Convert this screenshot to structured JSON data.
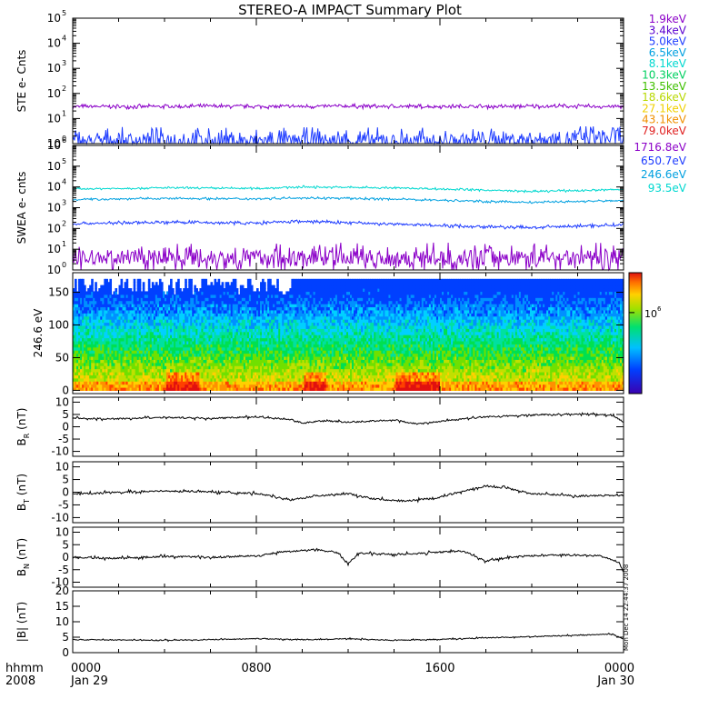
{
  "title": "STEREO-A IMPACT Summary Plot",
  "stamp": "Mon Dec 14 22:44:37 2008",
  "time_axis": {
    "corner_top": "hhmm",
    "corner_bottom": "2008",
    "ticks": [
      {
        "hour": 0,
        "label": "0000",
        "sub": "Jan 29"
      },
      {
        "hour": 8,
        "label": "0800",
        "sub": ""
      },
      {
        "hour": 16,
        "label": "1600",
        "sub": ""
      },
      {
        "hour": 24,
        "label": "0000",
        "sub": "Jan 30"
      }
    ]
  },
  "chart_data": [
    {
      "type": "line",
      "name": "ste",
      "ylabel": "STE e- Cnts",
      "yscale": "log",
      "ylim": [
        1,
        100000
      ],
      "yticks": [
        {
          "v": 1,
          "label": "10",
          "exp": "0"
        },
        {
          "v": 10,
          "label": "10",
          "exp": "1"
        },
        {
          "v": 100,
          "label": "10",
          "exp": "2"
        },
        {
          "v": 1000,
          "label": "10",
          "exp": "3"
        },
        {
          "v": 10000,
          "label": "10",
          "exp": "4"
        },
        {
          "v": 100000,
          "label": "10",
          "exp": "5"
        }
      ],
      "legend": [
        {
          "label": "1.9keV",
          "color": "#8b00c8"
        },
        {
          "label": "3.4keV",
          "color": "#5a00d0"
        },
        {
          "label": "5.0keV",
          "color": "#1e3cff"
        },
        {
          "label": "6.5keV",
          "color": "#00a0e0"
        },
        {
          "label": "8.1keV",
          "color": "#00d8d0"
        },
        {
          "label": "10.3keV",
          "color": "#00d060"
        },
        {
          "label": "13.5keV",
          "color": "#40c000"
        },
        {
          "label": "18.6keV",
          "color": "#b8d800"
        },
        {
          "label": "27.1keV",
          "color": "#f0d000"
        },
        {
          "label": "43.1keV",
          "color": "#f09000"
        },
        {
          "label": "79.0keV",
          "color": "#e02020"
        }
      ],
      "series": [
        {
          "color": "#8b00c8",
          "values": [
            [
              0,
              30
            ],
            [
              3,
              30
            ],
            [
              6,
              31
            ],
            [
              9,
              30
            ],
            [
              12,
              31
            ],
            [
              15,
              30
            ],
            [
              18,
              30
            ],
            [
              21,
              31
            ],
            [
              24,
              30
            ]
          ],
          "noise": 0.06
        },
        {
          "color": "#1e3cff",
          "values": [
            [
              0,
              1.2
            ],
            [
              4,
              1.3
            ],
            [
              8,
              1.2
            ],
            [
              12,
              1.3
            ],
            [
              16,
              1.2
            ],
            [
              19,
              1.4
            ],
            [
              22,
              1.6
            ],
            [
              24,
              1.7
            ]
          ],
          "noise": 0.35
        }
      ]
    },
    {
      "type": "line",
      "name": "swea",
      "ylabel": "SWEA e- cnts",
      "yscale": "log",
      "ylim": [
        1,
        1000000
      ],
      "yticks": [
        {
          "v": 1,
          "label": "10",
          "exp": "0"
        },
        {
          "v": 10,
          "label": "10",
          "exp": "1"
        },
        {
          "v": 100,
          "label": "10",
          "exp": "2"
        },
        {
          "v": 1000,
          "label": "10",
          "exp": "3"
        },
        {
          "v": 10000,
          "label": "10",
          "exp": "4"
        },
        {
          "v": 100000,
          "label": "10",
          "exp": "5"
        },
        {
          "v": 1000000,
          "label": "10",
          "exp": "6"
        }
      ],
      "legend": [
        {
          "label": "1716.8eV",
          "color": "#8b00c8"
        },
        {
          "label": "650.7eV",
          "color": "#1e3cff"
        },
        {
          "label": "246.6eV",
          "color": "#00a0e0"
        },
        {
          "label": "93.5eV",
          "color": "#00d8d0"
        }
      ],
      "series": [
        {
          "color": "#00d8d0",
          "values": [
            [
              0,
              8000
            ],
            [
              4,
              9000
            ],
            [
              8,
              8500
            ],
            [
              10,
              10000
            ],
            [
              14,
              9000
            ],
            [
              18,
              7000
            ],
            [
              20,
              6000
            ],
            [
              24,
              7500
            ]
          ],
          "noise": 0.04
        },
        {
          "color": "#00a0e0",
          "values": [
            [
              0,
              2500
            ],
            [
              4,
              2800
            ],
            [
              8,
              2700
            ],
            [
              10,
              3000
            ],
            [
              14,
              2600
            ],
            [
              18,
              2000
            ],
            [
              20,
              1800
            ],
            [
              24,
              2200
            ]
          ],
          "noise": 0.04
        },
        {
          "color": "#1e3cff",
          "values": [
            [
              0,
              170
            ],
            [
              4,
              200
            ],
            [
              8,
              180
            ],
            [
              10,
              220
            ],
            [
              14,
              160
            ],
            [
              18,
              120
            ],
            [
              20,
              110
            ],
            [
              24,
              150
            ]
          ],
          "noise": 0.06
        },
        {
          "color": "#8b00c8",
          "values": [
            [
              0,
              4
            ],
            [
              8,
              4
            ],
            [
              16,
              4
            ],
            [
              24,
              4
            ]
          ],
          "noise": 0.45
        }
      ]
    },
    {
      "type": "heatmap",
      "name": "pad",
      "ylabel": "246.6 eV",
      "ylim": [
        -5,
        180
      ],
      "yticks": [
        {
          "v": 0,
          "label": "0"
        },
        {
          "v": 50,
          "label": "50"
        },
        {
          "v": 100,
          "label": "100"
        },
        {
          "v": 150,
          "label": "150"
        }
      ],
      "colorbar": {
        "tick_label": "10",
        "tick_exp": "6"
      }
    },
    {
      "type": "line",
      "name": "br",
      "ylabel": "B",
      "ysub": "R",
      "yunit": " (nT)",
      "ylim": [
        -12,
        12
      ],
      "yticks": [
        {
          "v": -10,
          "label": "-10"
        },
        {
          "v": -5,
          "label": "-5"
        },
        {
          "v": 0,
          "label": "0"
        },
        {
          "v": 5,
          "label": "5"
        },
        {
          "v": 10,
          "label": "10"
        }
      ],
      "series": [
        {
          "color": "#000000",
          "values": [
            [
              0,
              3.5
            ],
            [
              2,
              3.2
            ],
            [
              4,
              3.8
            ],
            [
              6,
              3.4
            ],
            [
              8,
              4.0
            ],
            [
              9.5,
              3.0
            ],
            [
              10,
              1.5
            ],
            [
              11,
              2.5
            ],
            [
              12,
              1.8
            ],
            [
              14,
              2.8
            ],
            [
              15,
              1.2
            ],
            [
              16,
              2.2
            ],
            [
              18,
              4.0
            ],
            [
              20,
              4.8
            ],
            [
              22,
              5.2
            ],
            [
              23.5,
              4.8
            ],
            [
              24,
              2.0
            ]
          ],
          "noise": 0.3
        }
      ]
    },
    {
      "type": "line",
      "name": "bt",
      "ylabel": "B",
      "ysub": "T",
      "yunit": " (nT)",
      "ylim": [
        -12,
        12
      ],
      "yticks": [
        {
          "v": -10,
          "label": "-10"
        },
        {
          "v": -5,
          "label": "-5"
        },
        {
          "v": 0,
          "label": "0"
        },
        {
          "v": 5,
          "label": "5"
        },
        {
          "v": 10,
          "label": "10"
        }
      ],
      "series": [
        {
          "color": "#000000",
          "values": [
            [
              0,
              -0.8
            ],
            [
              2,
              0
            ],
            [
              4,
              0.5
            ],
            [
              6,
              0.2
            ],
            [
              8,
              -0.5
            ],
            [
              9.5,
              -3
            ],
            [
              10.5,
              -1.5
            ],
            [
              12,
              -0.5
            ],
            [
              13,
              -2.5
            ],
            [
              14.5,
              -3.5
            ],
            [
              16,
              -2
            ],
            [
              17,
              0.5
            ],
            [
              18,
              2.5
            ],
            [
              19,
              1.5
            ],
            [
              20,
              -0.5
            ],
            [
              22,
              -1.5
            ],
            [
              24,
              -1.2
            ]
          ],
          "noise": 0.35
        }
      ]
    },
    {
      "type": "line",
      "name": "bn",
      "ylabel": "B",
      "ysub": "N",
      "yunit": " (nT)",
      "ylim": [
        -12,
        12
      ],
      "yticks": [
        {
          "v": -10,
          "label": "-10"
        },
        {
          "v": -5,
          "label": "-5"
        },
        {
          "v": 0,
          "label": "0"
        },
        {
          "v": 5,
          "label": "5"
        },
        {
          "v": 10,
          "label": "10"
        }
      ],
      "series": [
        {
          "color": "#000000",
          "values": [
            [
              0,
              0
            ],
            [
              2,
              -0.5
            ],
            [
              4,
              0.3
            ],
            [
              6,
              0
            ],
            [
              8,
              0.5
            ],
            [
              9,
              2
            ],
            [
              10.5,
              3
            ],
            [
              11.5,
              2
            ],
            [
              12,
              -2.5
            ],
            [
              12.5,
              1.5
            ],
            [
              14,
              1
            ],
            [
              16,
              2
            ],
            [
              17,
              2.5
            ],
            [
              18,
              -1.5
            ],
            [
              19,
              0
            ],
            [
              21,
              1
            ],
            [
              23,
              0.5
            ],
            [
              23.8,
              -2
            ],
            [
              24,
              -6
            ]
          ],
          "noise": 0.35
        }
      ]
    },
    {
      "type": "line",
      "name": "bmag",
      "ylabel": "|B| (nT)",
      "ylim": [
        0,
        20
      ],
      "yticks": [
        {
          "v": 0,
          "label": "0"
        },
        {
          "v": 5,
          "label": "5"
        },
        {
          "v": 10,
          "label": "10"
        },
        {
          "v": 15,
          "label": "15"
        },
        {
          "v": 20,
          "label": "20"
        }
      ],
      "series": [
        {
          "color": "#000000",
          "values": [
            [
              0,
              4.2
            ],
            [
              4,
              4.0
            ],
            [
              8,
              4.5
            ],
            [
              10,
              4.2
            ],
            [
              12,
              4.5
            ],
            [
              14,
              4.0
            ],
            [
              16,
              4.3
            ],
            [
              18,
              4.8
            ],
            [
              20,
              5.2
            ],
            [
              22,
              5.6
            ],
            [
              23.5,
              6.0
            ],
            [
              24,
              4.5
            ]
          ],
          "noise": 0.15
        }
      ]
    }
  ]
}
